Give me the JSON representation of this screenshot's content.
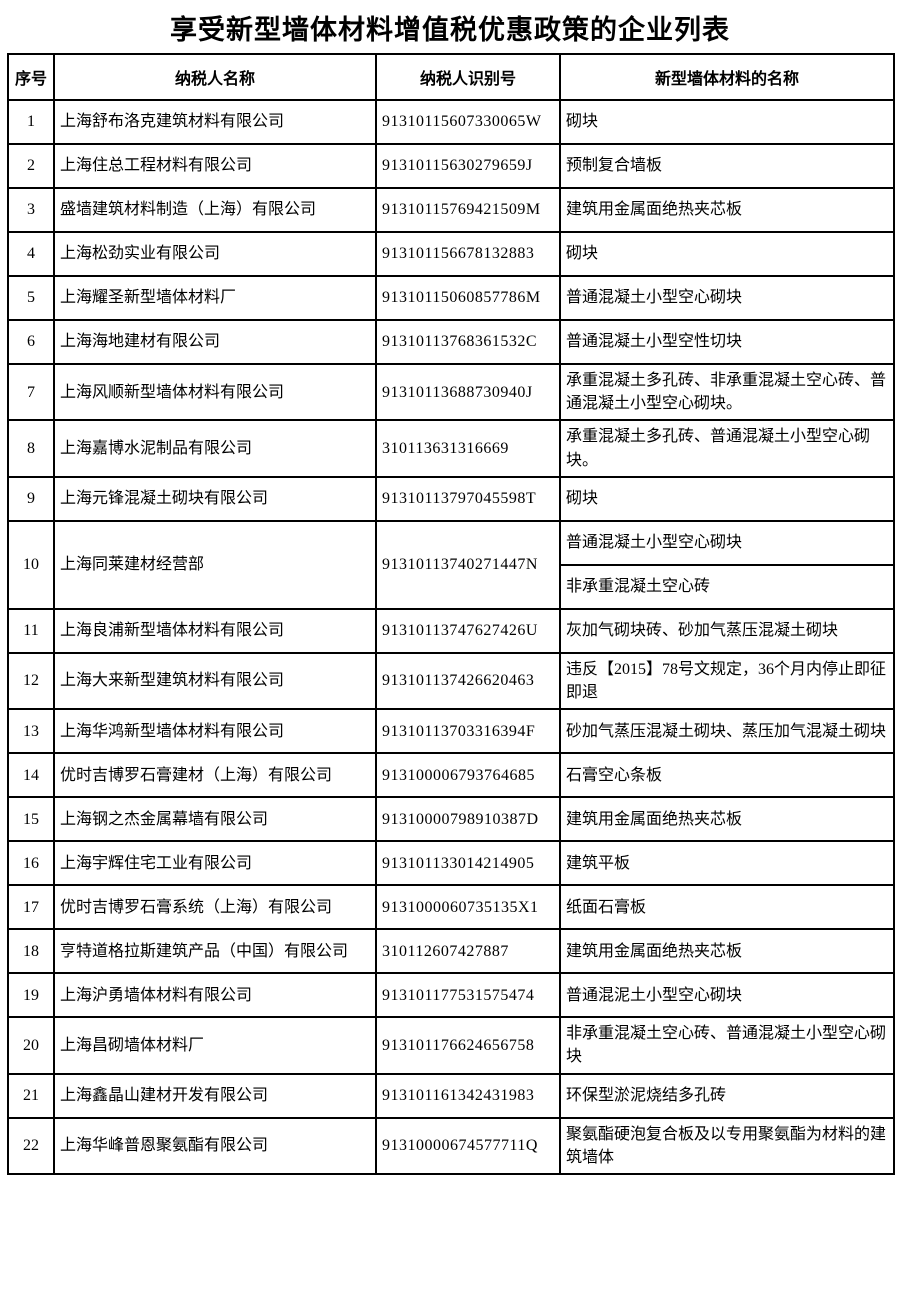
{
  "title": "享受新型墙体材料增值税优惠政策的企业列表",
  "table": {
    "headers": [
      "序号",
      "纳税人名称",
      "纳税人识别号",
      "新型墙体材料的名称"
    ],
    "rows": [
      {
        "no": "1",
        "name": "上海舒布洛克建筑材料有限公司",
        "tax_id": "91310115607330065W",
        "materials": [
          "砌块"
        ]
      },
      {
        "no": "2",
        "name": "上海住总工程材料有限公司",
        "tax_id": "91310115630279659J",
        "materials": [
          "预制复合墙板"
        ]
      },
      {
        "no": "3",
        "name": "盛墙建筑材料制造（上海）有限公司",
        "tax_id": "91310115769421509M",
        "materials": [
          "建筑用金属面绝热夹芯板"
        ]
      },
      {
        "no": "4",
        "name": "上海松劲实业有限公司",
        "tax_id": "913101156678132883",
        "materials": [
          "砌块"
        ]
      },
      {
        "no": "5",
        "name": "上海耀圣新型墙体材料厂",
        "tax_id": "91310115060857786M",
        "materials": [
          "普通混凝土小型空心砌块"
        ]
      },
      {
        "no": "6",
        "name": "上海海地建材有限公司",
        "tax_id": "91310113768361532C",
        "materials": [
          "普通混凝土小型空性切块"
        ]
      },
      {
        "no": "7",
        "name": "上海风顺新型墙体材料有限公司",
        "tax_id": "91310113688730940J",
        "materials": [
          "承重混凝土多孔砖、非承重混凝土空心砖、普通混凝土小型空心砌块。"
        ]
      },
      {
        "no": "8",
        "name": "上海嘉博水泥制品有限公司",
        "tax_id": "310113631316669",
        "materials": [
          "承重混凝土多孔砖、普通混凝土小型空心砌块。"
        ]
      },
      {
        "no": "9",
        "name": "上海元锋混凝土砌块有限公司",
        "tax_id": "91310113797045598T",
        "materials": [
          "砌块"
        ]
      },
      {
        "no": "10",
        "name": "上海同莱建材经营部",
        "tax_id": "91310113740271447N",
        "materials": [
          "普通混凝土小型空心砌块",
          "非承重混凝土空心砖"
        ]
      },
      {
        "no": "11",
        "name": "上海良浦新型墙体材料有限公司",
        "tax_id": "91310113747627426U",
        "materials": [
          "灰加气砌块砖、砂加气蒸压混凝土砌块"
        ]
      },
      {
        "no": "12",
        "name": "上海大来新型建筑材料有限公司",
        "tax_id": "913101137426620463",
        "materials": [
          "违反【2015】78号文规定，36个月内停止即征即退"
        ]
      },
      {
        "no": "13",
        "name": "上海华鸿新型墙体材料有限公司",
        "tax_id": "91310113703316394F",
        "materials": [
          "砂加气蒸压混凝土砌块、蒸压加气混凝土砌块"
        ]
      },
      {
        "no": "14",
        "name": "优时吉博罗石膏建材（上海）有限公司",
        "tax_id": "913100006793764685",
        "materials": [
          "石膏空心条板"
        ]
      },
      {
        "no": "15",
        "name": "上海钢之杰金属幕墙有限公司",
        "tax_id": "91310000798910387D",
        "materials": [
          "建筑用金属面绝热夹芯板"
        ]
      },
      {
        "no": "16",
        "name": "上海宇辉住宅工业有限公司",
        "tax_id": "913101133014214905",
        "materials": [
          "建筑平板"
        ]
      },
      {
        "no": "17",
        "name": "优时吉博罗石膏系统（上海）有限公司",
        "tax_id": "9131000060735135X1",
        "materials": [
          "纸面石膏板"
        ]
      },
      {
        "no": "18",
        "name": "亨特道格拉斯建筑产品（中国）有限公司",
        "tax_id": "310112607427887",
        "materials": [
          "建筑用金属面绝热夹芯板"
        ]
      },
      {
        "no": "19",
        "name": "上海沪勇墙体材料有限公司",
        "tax_id": "913101177531575474",
        "materials": [
          "普通混泥土小型空心砌块"
        ]
      },
      {
        "no": "20",
        "name": "上海昌砌墙体材料厂",
        "tax_id": "913101176624656758",
        "materials": [
          "非承重混凝土空心砖、普通混凝土小型空心砌块"
        ]
      },
      {
        "no": "21",
        "name": "上海鑫晶山建材开发有限公司",
        "tax_id": "913101161342431983",
        "materials": [
          "环保型淤泥烧结多孔砖"
        ]
      },
      {
        "no": "22",
        "name": "上海华峰普恩聚氨酯有限公司",
        "tax_id": "91310000674577711Q",
        "materials": [
          "聚氨酯硬泡复合板及以专用聚氨酯为材料的建筑墙体"
        ]
      }
    ]
  }
}
